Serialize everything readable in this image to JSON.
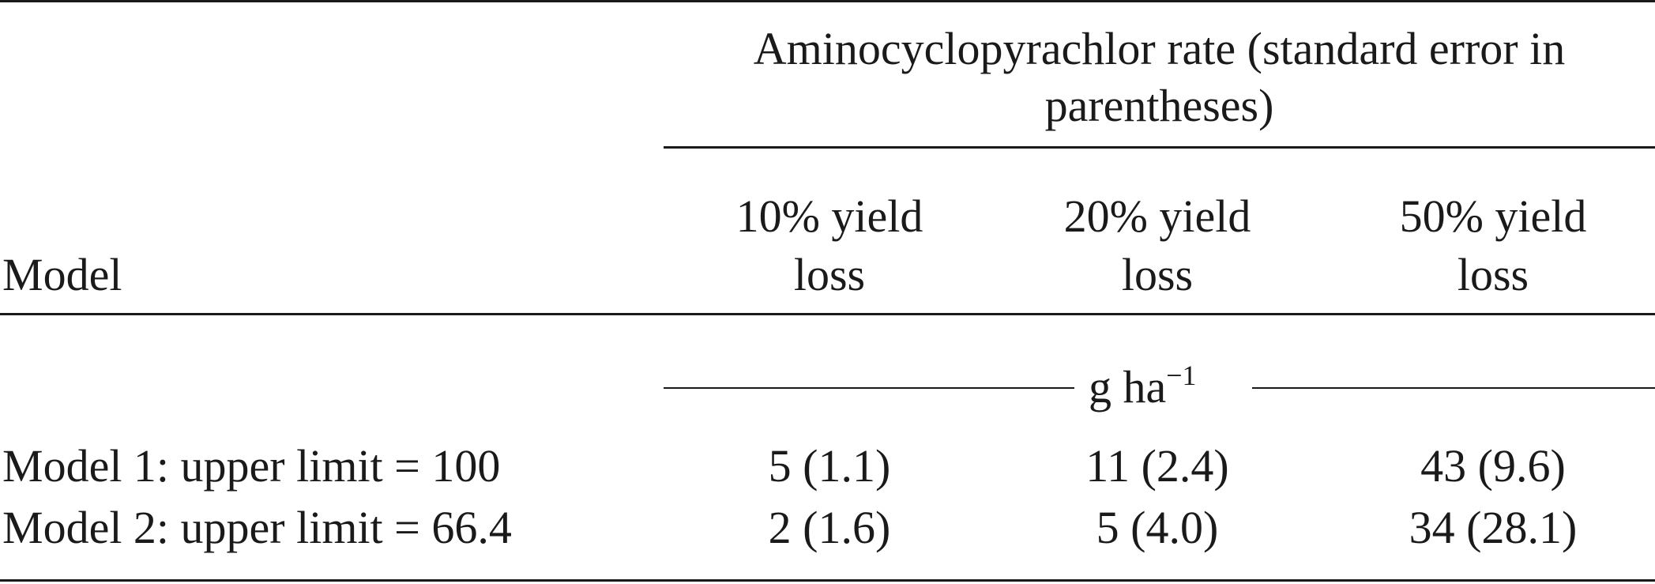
{
  "header": {
    "spanner": [
      "Aminocyclopyrachlor rate (standard error in",
      "parentheses)"
    ],
    "model_label": "Model",
    "columns": [
      [
        "10% yield",
        "loss"
      ],
      [
        "20% yield",
        "loss"
      ],
      [
        "50% yield",
        "loss"
      ]
    ]
  },
  "units": {
    "base": "g ha",
    "exponent": "−1"
  },
  "rows": [
    {
      "model": "Model 1: upper limit = 100",
      "values": [
        "5 (1.1)",
        "11 (2.4)",
        "43 (9.6)"
      ]
    },
    {
      "model": "Model 2: upper limit = 66.4",
      "values": [
        "2 (1.6)",
        "5 (4.0)",
        "34 (28.1)"
      ]
    }
  ]
}
